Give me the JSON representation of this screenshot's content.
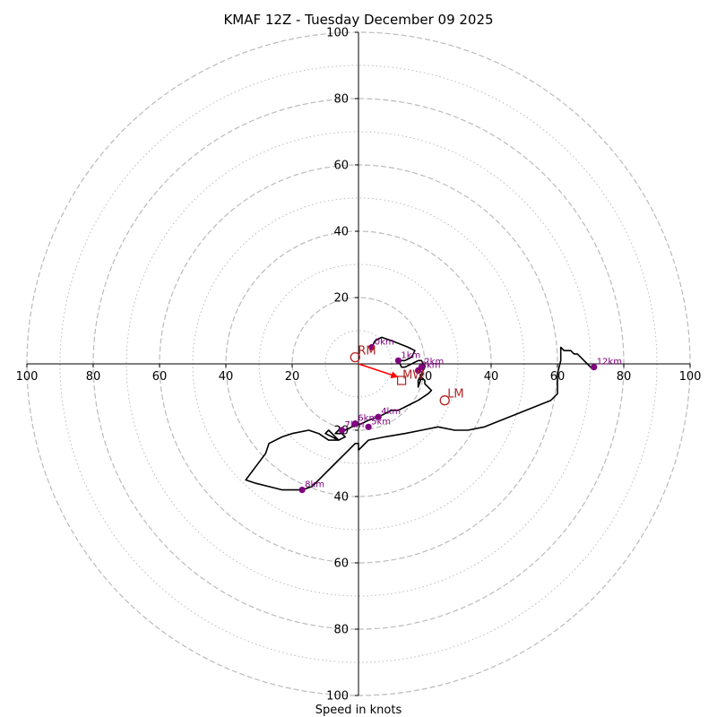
{
  "chart_data": {
    "type": "hodograph",
    "title": "KMAF 12Z - Tuesday December 09 2025",
    "xlabel": "Speed in knots",
    "ylabel": "",
    "range": [
      -100,
      100
    ],
    "rings_major": [
      20,
      40,
      60,
      80,
      100
    ],
    "rings_minor": [
      10,
      30,
      50,
      70,
      90
    ],
    "x_ticks": [
      "100",
      "80",
      "60",
      "40",
      "20",
      "20",
      "40",
      "60",
      "80",
      "100"
    ],
    "x_tick_values": [
      -100,
      -80,
      -60,
      -40,
      -20,
      20,
      40,
      60,
      80,
      100
    ],
    "y_ticks": [
      "100",
      "80",
      "60",
      "40",
      "20",
      "20",
      "40",
      "60",
      "80",
      "100"
    ],
    "y_tick_values": [
      100,
      80,
      60,
      40,
      20,
      -20,
      -40,
      -60,
      -80,
      -100
    ],
    "grid": true,
    "colors": {
      "trace": "#000000",
      "height_marker": "#800080",
      "motion": "#b22222",
      "shear_vector": "#ff0000",
      "grid": "#bbbbbb"
    },
    "trace": [
      [
        4,
        5
      ],
      [
        5,
        7
      ],
      [
        7,
        8
      ],
      [
        10,
        7
      ],
      [
        15,
        5
      ],
      [
        17,
        4
      ],
      [
        16,
        2
      ],
      [
        14,
        1
      ],
      [
        12,
        1
      ],
      [
        13,
        -1
      ],
      [
        14,
        -1
      ],
      [
        16,
        0
      ],
      [
        18,
        1
      ],
      [
        19,
        1
      ],
      [
        20,
        -1
      ],
      [
        19,
        -3
      ],
      [
        18,
        -5
      ],
      [
        18,
        -7
      ],
      [
        19,
        -4
      ],
      [
        20,
        -5
      ],
      [
        20,
        -6
      ],
      [
        21,
        -7
      ],
      [
        22,
        -8
      ],
      [
        21,
        -9
      ],
      [
        18,
        -11
      ],
      [
        16,
        -12
      ],
      [
        14,
        -13
      ],
      [
        12,
        -14
      ],
      [
        10,
        -14
      ],
      [
        8,
        -15
      ],
      [
        6,
        -16
      ],
      [
        3,
        -17
      ],
      [
        1,
        -18
      ],
      [
        -2,
        -19
      ],
      [
        -4,
        -20
      ],
      [
        -6,
        -20
      ],
      [
        -7,
        -21
      ],
      [
        -5,
        -21
      ],
      [
        -4,
        -22
      ],
      [
        -6,
        -23
      ],
      [
        -9,
        -20
      ],
      [
        -10,
        -21
      ],
      [
        -8,
        -22
      ],
      [
        -6,
        -23
      ],
      [
        -9,
        -23
      ],
      [
        -12,
        -21
      ],
      [
        -15,
        -20
      ],
      [
        -20,
        -21
      ],
      [
        -23,
        -22
      ],
      [
        -27,
        -24
      ],
      [
        -28,
        -27
      ],
      [
        -31,
        -31
      ],
      [
        -34,
        -35
      ],
      [
        -31,
        -36
      ],
      [
        -27,
        -37
      ],
      [
        -23,
        -38
      ],
      [
        -17,
        -38
      ],
      [
        -14,
        -37
      ],
      [
        -10,
        -33
      ],
      [
        -7,
        -30
      ],
      [
        -4,
        -27
      ],
      [
        -1,
        -24
      ],
      [
        0,
        -24
      ],
      [
        0,
        -26
      ],
      [
        1,
        -25
      ],
      [
        3,
        -23
      ],
      [
        8,
        -22
      ],
      [
        14,
        -21
      ],
      [
        19,
        -20
      ],
      [
        24,
        -19
      ],
      [
        29,
        -20
      ],
      [
        33,
        -20
      ],
      [
        38,
        -19
      ],
      [
        43,
        -17
      ],
      [
        48,
        -15
      ],
      [
        53,
        -13
      ],
      [
        58,
        -11
      ],
      [
        60,
        -9
      ],
      [
        60,
        -6
      ],
      [
        60,
        -3
      ],
      [
        61,
        1
      ],
      [
        61,
        3
      ],
      [
        61,
        5
      ],
      [
        62,
        4
      ],
      [
        63,
        4
      ],
      [
        64,
        4
      ],
      [
        65,
        3
      ],
      [
        66,
        3
      ],
      [
        67,
        2
      ],
      [
        68,
        1
      ],
      [
        69,
        0
      ],
      [
        70,
        -1
      ],
      [
        71,
        -1
      ]
    ],
    "height_markers": [
      {
        "label": "0km",
        "u": 4,
        "v": 5
      },
      {
        "label": "1km",
        "u": 12,
        "v": 1
      },
      {
        "label": "2km",
        "u": 19,
        "v": -1
      },
      {
        "label": "3km",
        "u": 18,
        "v": -2
      },
      {
        "label": "4km",
        "u": 6,
        "v": -16
      },
      {
        "label": "5km",
        "u": 3,
        "v": -19
      },
      {
        "label": "6km",
        "u": -1,
        "v": -18
      },
      {
        "label": "7km",
        "u": -5,
        "v": -20
      },
      {
        "label": "8km",
        "u": -17,
        "v": -38
      },
      {
        "label": "12km",
        "u": 71,
        "v": -1
      }
    ],
    "storm_motion": [
      {
        "label": "RM",
        "u": -1,
        "v": 2
      },
      {
        "label": "LM",
        "u": 26,
        "v": -11
      }
    ],
    "mean_wind": {
      "label": "MW",
      "u": 13,
      "v": -5
    },
    "shear_vector": {
      "u1": 0,
      "v1": 0,
      "u2": 12,
      "v2": -4
    }
  }
}
